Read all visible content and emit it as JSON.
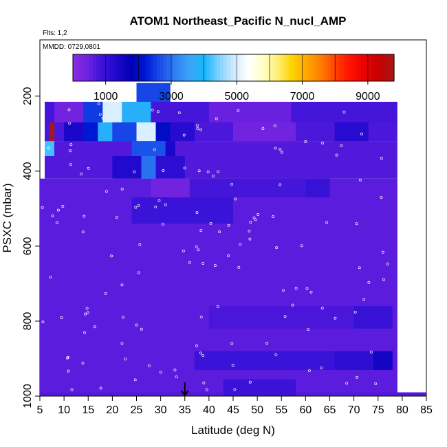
{
  "chart_data": {
    "type": "heatmap",
    "title": "ATOM1 Northeast_Pacific N_nucl_AMP",
    "flights_label": "Flts: 1,2",
    "date_label": "MMDD: 0729,0801",
    "xlabel": "Latitude (deg N)",
    "ylabel": "PSXC (mbar)",
    "xlim": [
      5,
      85
    ],
    "ylim": [
      1000,
      50
    ],
    "x_ticks": [
      "5",
      "10",
      "15",
      "20",
      "25",
      "30",
      "35",
      "40",
      "45",
      "50",
      "55",
      "60",
      "65",
      "70",
      "75",
      "80",
      "85"
    ],
    "y_ticks": [
      "200",
      "400",
      "600",
      "800",
      "1000"
    ],
    "colorbar": {
      "range": [
        0,
        9800
      ],
      "tick_labels": [
        "1000",
        "3000",
        "5000",
        "7000",
        "9000"
      ],
      "colors": [
        "#8a2be2",
        "#6f22e0",
        "#3c12d8",
        "#1f08cd",
        "#0000b4",
        "#0018d8",
        "#1a4fe8",
        "#2f7ef2",
        "#3ba5f7",
        "#16b7ff",
        "#7fd1ff",
        "#cfeaff",
        "#ffffff",
        "#ffffc8",
        "#fff07a",
        "#ffd400",
        "#ffa800",
        "#ff7d00",
        "#ff4000",
        "#ff1000",
        "#e80000",
        "#c40000",
        "#a81818"
      ]
    },
    "marker": {
      "x": 35,
      "label": "arrow"
    },
    "cells": [
      {
        "x0": 5,
        "x1": 85,
        "p0": 1000,
        "p1": 990,
        "value": 700
      },
      {
        "x0": 5,
        "x1": 79,
        "p0": 990,
        "p1": 420,
        "value": 620
      },
      {
        "x0": 6,
        "x1": 79,
        "p0": 420,
        "p1": 320,
        "value": 700
      },
      {
        "x0": 6,
        "x1": 79,
        "p0": 320,
        "p1": 270,
        "value": 760
      },
      {
        "x0": 6,
        "x1": 79,
        "p0": 270,
        "p1": 215,
        "value": 800
      },
      {
        "x0": 25,
        "x1": 32,
        "p0": 215,
        "p1": 165,
        "value": 2600
      },
      {
        "x0": 8,
        "x1": 14,
        "p0": 270,
        "p1": 215,
        "value": 400
      },
      {
        "x0": 14,
        "x1": 18,
        "p0": 270,
        "p1": 215,
        "value": 2500
      },
      {
        "x0": 18,
        "x1": 22,
        "p0": 270,
        "p1": 215,
        "value": 5000
      },
      {
        "x0": 22,
        "x1": 28,
        "p0": 270,
        "p1": 215,
        "value": 3800
      },
      {
        "x0": 28,
        "x1": 40,
        "p0": 270,
        "p1": 215,
        "value": 800
      },
      {
        "x0": 40,
        "x1": 57,
        "p0": 270,
        "p1": 215,
        "value": 500
      },
      {
        "x0": 7,
        "x1": 8,
        "p0": 320,
        "p1": 270,
        "value": 9800
      },
      {
        "x0": 10,
        "x1": 14,
        "p0": 320,
        "p1": 270,
        "value": 1400
      },
      {
        "x0": 14,
        "x1": 17,
        "p0": 320,
        "p1": 270,
        "value": 2200
      },
      {
        "x0": 17,
        "x1": 20,
        "p0": 320,
        "p1": 270,
        "value": 3800
      },
      {
        "x0": 20,
        "x1": 25,
        "p0": 320,
        "p1": 270,
        "value": 2600
      },
      {
        "x0": 25,
        "x1": 29,
        "p0": 320,
        "p1": 270,
        "value": 5000
      },
      {
        "x0": 29,
        "x1": 32,
        "p0": 320,
        "p1": 270,
        "value": 2000
      },
      {
        "x0": 32,
        "x1": 37,
        "p0": 320,
        "p1": 270,
        "value": 1200
      },
      {
        "x0": 45,
        "x1": 58,
        "p0": 320,
        "p1": 270,
        "value": 400
      },
      {
        "x0": 66,
        "x1": 73,
        "p0": 320,
        "p1": 270,
        "value": 1200
      },
      {
        "x0": 6,
        "x1": 8,
        "p0": 360,
        "p1": 320,
        "value": 4200
      },
      {
        "x0": 24,
        "x1": 31,
        "p0": 360,
        "p1": 320,
        "value": 2700
      },
      {
        "x0": 31,
        "x1": 33,
        "p0": 360,
        "p1": 320,
        "value": 1400
      },
      {
        "x0": 20,
        "x1": 26,
        "p0": 420,
        "p1": 360,
        "value": 1300
      },
      {
        "x0": 26,
        "x1": 29,
        "p0": 420,
        "p1": 360,
        "value": 3000
      },
      {
        "x0": 29,
        "x1": 35,
        "p0": 420,
        "p1": 360,
        "value": 1100
      },
      {
        "x0": 28,
        "x1": 36,
        "p0": 470,
        "p1": 420,
        "value": 400
      },
      {
        "x0": 24,
        "x1": 45,
        "p0": 540,
        "p1": 470,
        "value": 900
      },
      {
        "x0": 55,
        "x1": 65,
        "p0": 470,
        "p1": 420,
        "value": 950
      },
      {
        "x0": 36,
        "x1": 60,
        "p0": 470,
        "p1": 420,
        "value": 800
      },
      {
        "x0": 43,
        "x1": 58,
        "p0": 1000,
        "p1": 955,
        "value": 880
      },
      {
        "x0": 37,
        "x1": 66,
        "p0": 930,
        "p1": 880,
        "value": 900
      },
      {
        "x0": 66,
        "x1": 78,
        "p0": 930,
        "p1": 880,
        "value": 1100
      },
      {
        "x0": 74,
        "x1": 78,
        "p0": 930,
        "p1": 880,
        "value": 1500
      },
      {
        "x0": 40,
        "x1": 70,
        "p0": 820,
        "p1": 760,
        "value": 780
      },
      {
        "x0": 70,
        "x1": 78,
        "p0": 820,
        "p1": 760,
        "value": 950
      }
    ]
  }
}
